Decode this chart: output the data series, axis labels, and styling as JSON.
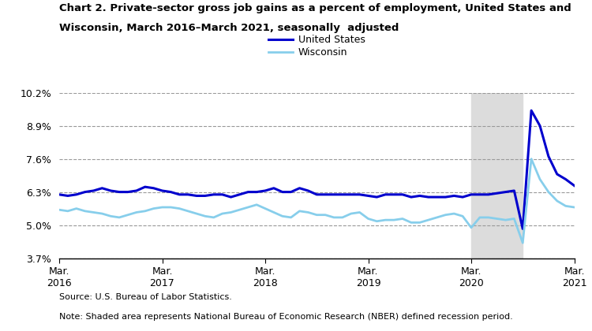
{
  "title_line1": "Chart 2. Private-sector gross job gains as a percent of employment, United States and",
  "title_line2": "Wisconsin, March 2016–March 2021, seasonally  adjusted",
  "source": "Source: U.S. Bureau of Labor Statistics.",
  "note": "Note: Shaded area represents National Bureau of Economic Research (NBER) defined recession period.",
  "us_color": "#0000CD",
  "wi_color": "#87CEEB",
  "recession_color": "#DCDCDC",
  "recession_start": 48,
  "recession_end": 54,
  "ylim": [
    3.7,
    10.2
  ],
  "yticks": [
    3.7,
    5.0,
    6.3,
    7.6,
    8.9,
    10.2
  ],
  "ytick_labels": [
    "3.7%",
    "5.0%",
    "6.3%",
    "7.6%",
    "8.9%",
    "10.2%"
  ],
  "xtick_positions": [
    0,
    12,
    24,
    36,
    48,
    60
  ],
  "xtick_labels": [
    "Mar.\n2016",
    "Mar.\n2017",
    "Mar.\n2018",
    "Mar.\n2019",
    "Mar.\n2020",
    "Mar.\n2021"
  ],
  "legend_labels": [
    "United States",
    "Wisconsin"
  ],
  "us_data": [
    6.2,
    6.15,
    6.2,
    6.3,
    6.35,
    6.45,
    6.35,
    6.3,
    6.3,
    6.35,
    6.5,
    6.45,
    6.35,
    6.3,
    6.2,
    6.2,
    6.15,
    6.15,
    6.2,
    6.2,
    6.1,
    6.2,
    6.3,
    6.3,
    6.35,
    6.45,
    6.3,
    6.3,
    6.45,
    6.35,
    6.2,
    6.2,
    6.2,
    6.2,
    6.2,
    6.2,
    6.15,
    6.1,
    6.2,
    6.2,
    6.2,
    6.1,
    6.15,
    6.1,
    6.1,
    6.1,
    6.15,
    6.1,
    6.2,
    6.2,
    6.2,
    6.25,
    6.3,
    6.35,
    4.85,
    9.5,
    8.9,
    7.7,
    7.0,
    6.8,
    6.55
  ],
  "wi_data": [
    5.6,
    5.55,
    5.65,
    5.55,
    5.5,
    5.45,
    5.35,
    5.3,
    5.4,
    5.5,
    5.55,
    5.65,
    5.7,
    5.7,
    5.65,
    5.55,
    5.45,
    5.35,
    5.3,
    5.45,
    5.5,
    5.6,
    5.7,
    5.8,
    5.65,
    5.5,
    5.35,
    5.3,
    5.55,
    5.5,
    5.4,
    5.4,
    5.3,
    5.3,
    5.45,
    5.5,
    5.25,
    5.15,
    5.2,
    5.2,
    5.25,
    5.1,
    5.1,
    5.2,
    5.3,
    5.4,
    5.45,
    5.35,
    4.9,
    5.3,
    5.3,
    5.25,
    5.2,
    5.25,
    4.3,
    7.6,
    6.8,
    6.3,
    5.95,
    5.75,
    5.7
  ]
}
